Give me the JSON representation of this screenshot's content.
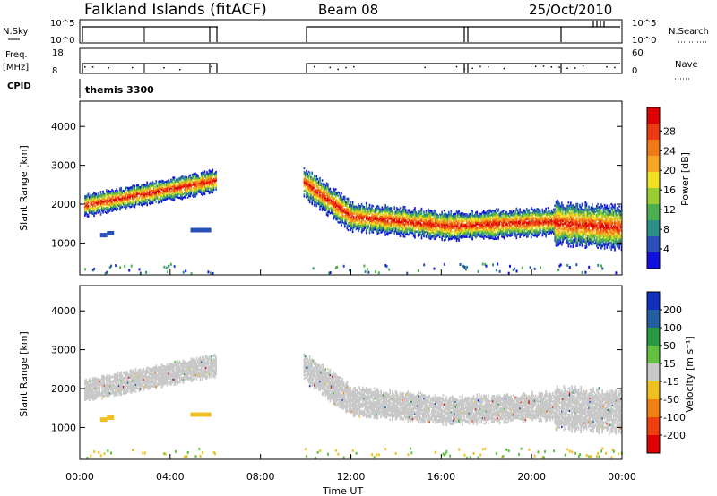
{
  "header": {
    "station": "Falkland Islands (fitACF)",
    "beam": "Beam 08",
    "date": "25/Oct/2010"
  },
  "strip_labels": {
    "nsky": "N.Sky",
    "nsearch": "N.Search",
    "freq_line1": "Freq.",
    "freq_line2": "[MHz]",
    "nave": "Nave",
    "cpid": "CPID",
    "cpid_value": "themis 3300"
  },
  "strip_ticks": {
    "nsky_top": "10^5",
    "nsky_bottom": "10^0",
    "nsearch_top": "10^5",
    "nsearch_bottom": "10^0",
    "freq_top": "18",
    "freq_bottom": "8",
    "nave_top": "60",
    "nave_bottom": "0"
  },
  "chart_data": [
    {
      "type": "heatmap",
      "panel": "power",
      "ylabel": "Slant Range [km]",
      "xlabel": "",
      "x_ticks": [
        "00:00",
        "04:00",
        "08:00",
        "12:00",
        "16:00",
        "20:00",
        "00:00"
      ],
      "x_range_hours": [
        0,
        24
      ],
      "y_ticks": [
        1000,
        2000,
        3000,
        4000
      ],
      "ylim": [
        180,
        4650
      ],
      "colorbar": {
        "label": "Power [dB]",
        "ticks": [
          "4",
          "8",
          "12",
          "16",
          "20",
          "24",
          "28"
        ],
        "colors": [
          "#1010e0",
          "#2a4fb8",
          "#2e8f8a",
          "#4caf50",
          "#9acd32",
          "#f0e020",
          "#f5a623",
          "#f07a18",
          "#ee3a14",
          "#e00000"
        ]
      },
      "gaps_hours": [
        [
          6.0,
          9.9
        ]
      ]
    },
    {
      "type": "heatmap",
      "panel": "velocity",
      "ylabel": "Slant Range [km]",
      "xlabel": "Time UT",
      "x_ticks": [
        "00:00",
        "04:00",
        "08:00",
        "12:00",
        "16:00",
        "20:00",
        "00:00"
      ],
      "x_range_hours": [
        0,
        24
      ],
      "y_ticks": [
        1000,
        2000,
        3000,
        4000
      ],
      "ylim": [
        180,
        4650
      ],
      "colorbar": {
        "label": "Velocity [m s⁻¹]",
        "ticks": [
          "200",
          "100",
          "50",
          "15",
          "-15",
          "-50",
          "-100",
          "-200"
        ],
        "colors": [
          "#1030c0",
          "#2060a0",
          "#2a9a40",
          "#60c040",
          "#c8c8c8",
          "#f0c020",
          "#f08010",
          "#f04010",
          "#e00000"
        ]
      },
      "gaps_hours": [
        [
          6.0,
          9.9
        ]
      ]
    }
  ]
}
